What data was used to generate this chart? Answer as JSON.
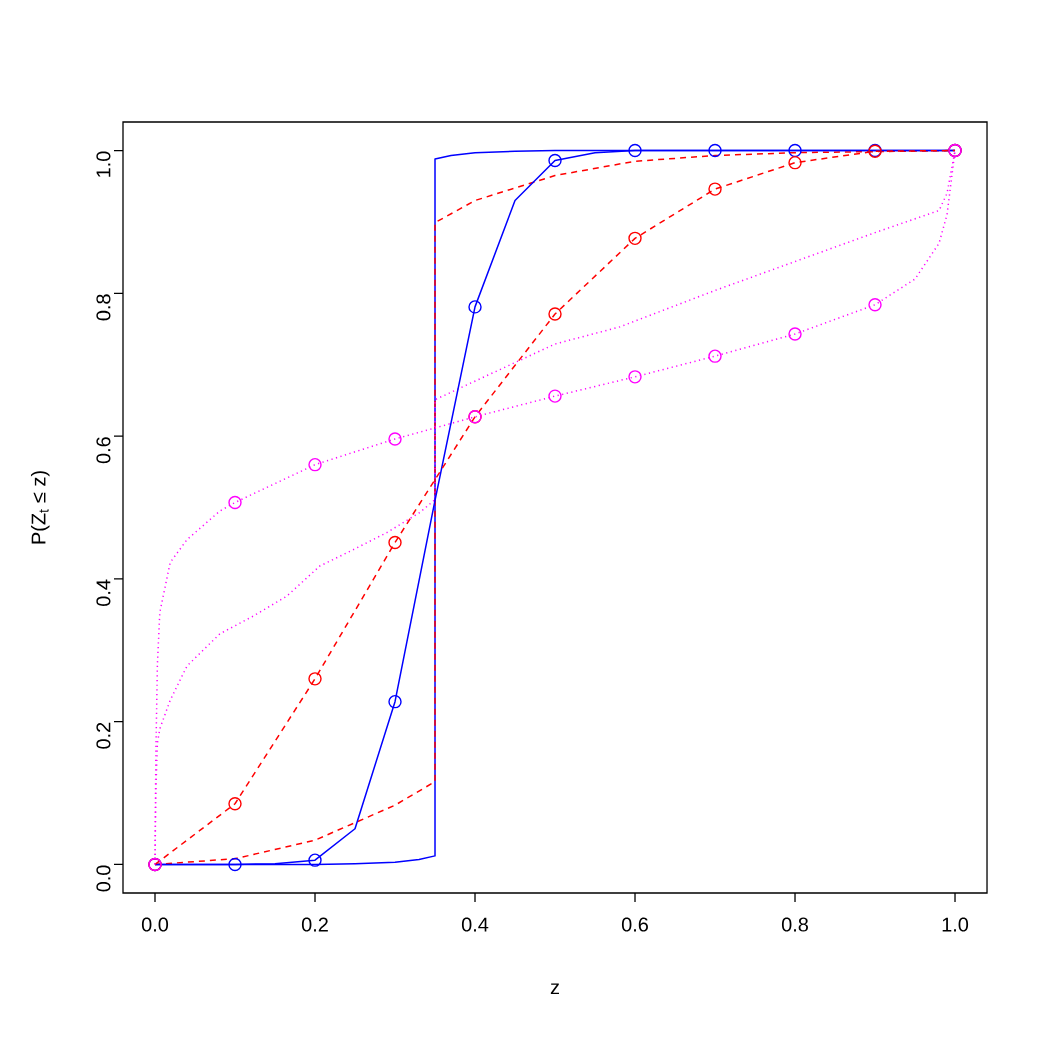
{
  "chart_data": {
    "type": "line",
    "xlabel": "z",
    "ylabel": "P(Z$_{t}$ ≤ z)",
    "xlim": [
      -0.04,
      1.04
    ],
    "ylim": [
      -0.04,
      1.04
    ],
    "xticks": [
      {
        "value": 0,
        "label": "0.0"
      },
      {
        "value": 0.2,
        "label": "0.2"
      },
      {
        "value": 0.4,
        "label": "0.4"
      },
      {
        "value": 0.6,
        "label": "0.6"
      },
      {
        "value": 0.8,
        "label": "0.8"
      },
      {
        "value": 1,
        "label": "1.0"
      }
    ],
    "yticks": [
      {
        "value": 0,
        "label": "0.0"
      },
      {
        "value": 0.2,
        "label": "0.2"
      },
      {
        "value": 0.4,
        "label": "0.4"
      },
      {
        "value": 0.6,
        "label": "0.6"
      },
      {
        "value": 0.8,
        "label": "0.8"
      },
      {
        "value": 1,
        "label": "1.0"
      }
    ],
    "series": [
      {
        "color": "#0000ff",
        "marker": "none",
        "line_style": "solid",
        "x": [
          0,
          0.1,
          0.2,
          0.25,
          0.3,
          0.33,
          0.35,
          0.35,
          0.37,
          0.4,
          0.45,
          0.5,
          1
        ],
        "values": [
          0,
          0,
          0,
          0.001,
          0.003,
          0.007,
          0.012,
          0.988,
          0.993,
          0.997,
          0.999,
          1,
          1
        ]
      },
      {
        "color": "#ff0000",
        "marker": "none",
        "line_style": "dashed",
        "x": [
          0,
          0.1,
          0.2,
          0.3,
          0.35,
          0.35,
          0.4,
          0.5,
          0.6,
          0.7,
          0.8,
          1
        ],
        "values": [
          0,
          0.008,
          0.034,
          0.083,
          0.116,
          0.899,
          0.93,
          0.965,
          0.985,
          0.993,
          0.997,
          1
        ]
      },
      {
        "color": "#ff00ff",
        "marker": "none",
        "line_style": "dotted",
        "x": [
          0,
          0.001,
          0.003,
          0.006,
          0.019,
          0.04,
          0.081,
          0.123,
          0.165,
          0.206,
          0.248,
          0.29,
          0.331,
          0.35,
          0.35,
          0.5,
          0.581,
          0.7,
          0.9,
          0.98,
          0.99,
          1
        ],
        "values": [
          0,
          0.1,
          0.17,
          0.19,
          0.23,
          0.278,
          0.323,
          0.348,
          0.376,
          0.418,
          0.441,
          0.465,
          0.493,
          0.511,
          0.651,
          0.729,
          0.753,
          0.804,
          0.885,
          0.916,
          0.94,
          1
        ]
      },
      {
        "color": "#0000ff",
        "marker": "none",
        "line_style": "solid",
        "x": [
          0,
          0.1,
          0.15,
          0.2,
          0.25,
          0.3,
          0.35,
          0.4,
          0.45,
          0.5,
          0.55,
          0.6,
          1
        ],
        "values": [
          0,
          0,
          0.001,
          0.006,
          0.05,
          0.228,
          0.51,
          0.781,
          0.93,
          0.986,
          0.997,
          1,
          1
        ]
      },
      {
        "color": "#ff0000",
        "marker": "none",
        "line_style": "dashed",
        "x": [
          0,
          0.1,
          0.2,
          0.3,
          0.4,
          0.5,
          0.6,
          0.7,
          0.8,
          0.9,
          1
        ],
        "values": [
          0,
          0.085,
          0.26,
          0.451,
          0.627,
          0.771,
          0.877,
          0.946,
          0.983,
          0.999,
          1
        ]
      },
      {
        "color": "#ff00ff",
        "marker": "none",
        "line_style": "dotted",
        "x": [
          0,
          0.001,
          0.003,
          0.006,
          0.019,
          0.04,
          0.081,
          0.1,
          0.2,
          0.3,
          0.4,
          0.5,
          0.6,
          0.7,
          0.8,
          0.9,
          0.95,
          0.98,
          0.99,
          1
        ],
        "values": [
          0,
          0.15,
          0.28,
          0.353,
          0.423,
          0.455,
          0.495,
          0.507,
          0.56,
          0.596,
          0.627,
          0.656,
          0.683,
          0.712,
          0.743,
          0.784,
          0.82,
          0.87,
          0.91,
          1
        ]
      },
      {
        "type": "scatter",
        "color": "#0000ff",
        "marker": "circle",
        "x": [
          0,
          0.1,
          0.2,
          0.3,
          0.4,
          0.5,
          0.6,
          0.7,
          0.8,
          0.9,
          1
        ],
        "values": [
          0,
          0,
          0.006,
          0.228,
          0.781,
          0.986,
          1,
          1,
          1,
          1,
          1
        ]
      },
      {
        "type": "scatter",
        "color": "#ff0000",
        "marker": "circle",
        "x": [
          0,
          0.1,
          0.2,
          0.3,
          0.4,
          0.5,
          0.6,
          0.7,
          0.8,
          0.9,
          1
        ],
        "values": [
          0,
          0.085,
          0.26,
          0.451,
          0.627,
          0.771,
          0.877,
          0.946,
          0.983,
          0.999,
          1
        ]
      },
      {
        "type": "scatter",
        "color": "#ff00ff",
        "marker": "circle",
        "x": [
          0,
          0.1,
          0.2,
          0.3,
          0.4,
          0.5,
          0.6,
          0.7,
          0.8,
          0.9,
          1
        ],
        "values": [
          0,
          0.507,
          0.56,
          0.596,
          0.627,
          0.656,
          0.683,
          0.712,
          0.743,
          0.784,
          1
        ]
      }
    ]
  }
}
